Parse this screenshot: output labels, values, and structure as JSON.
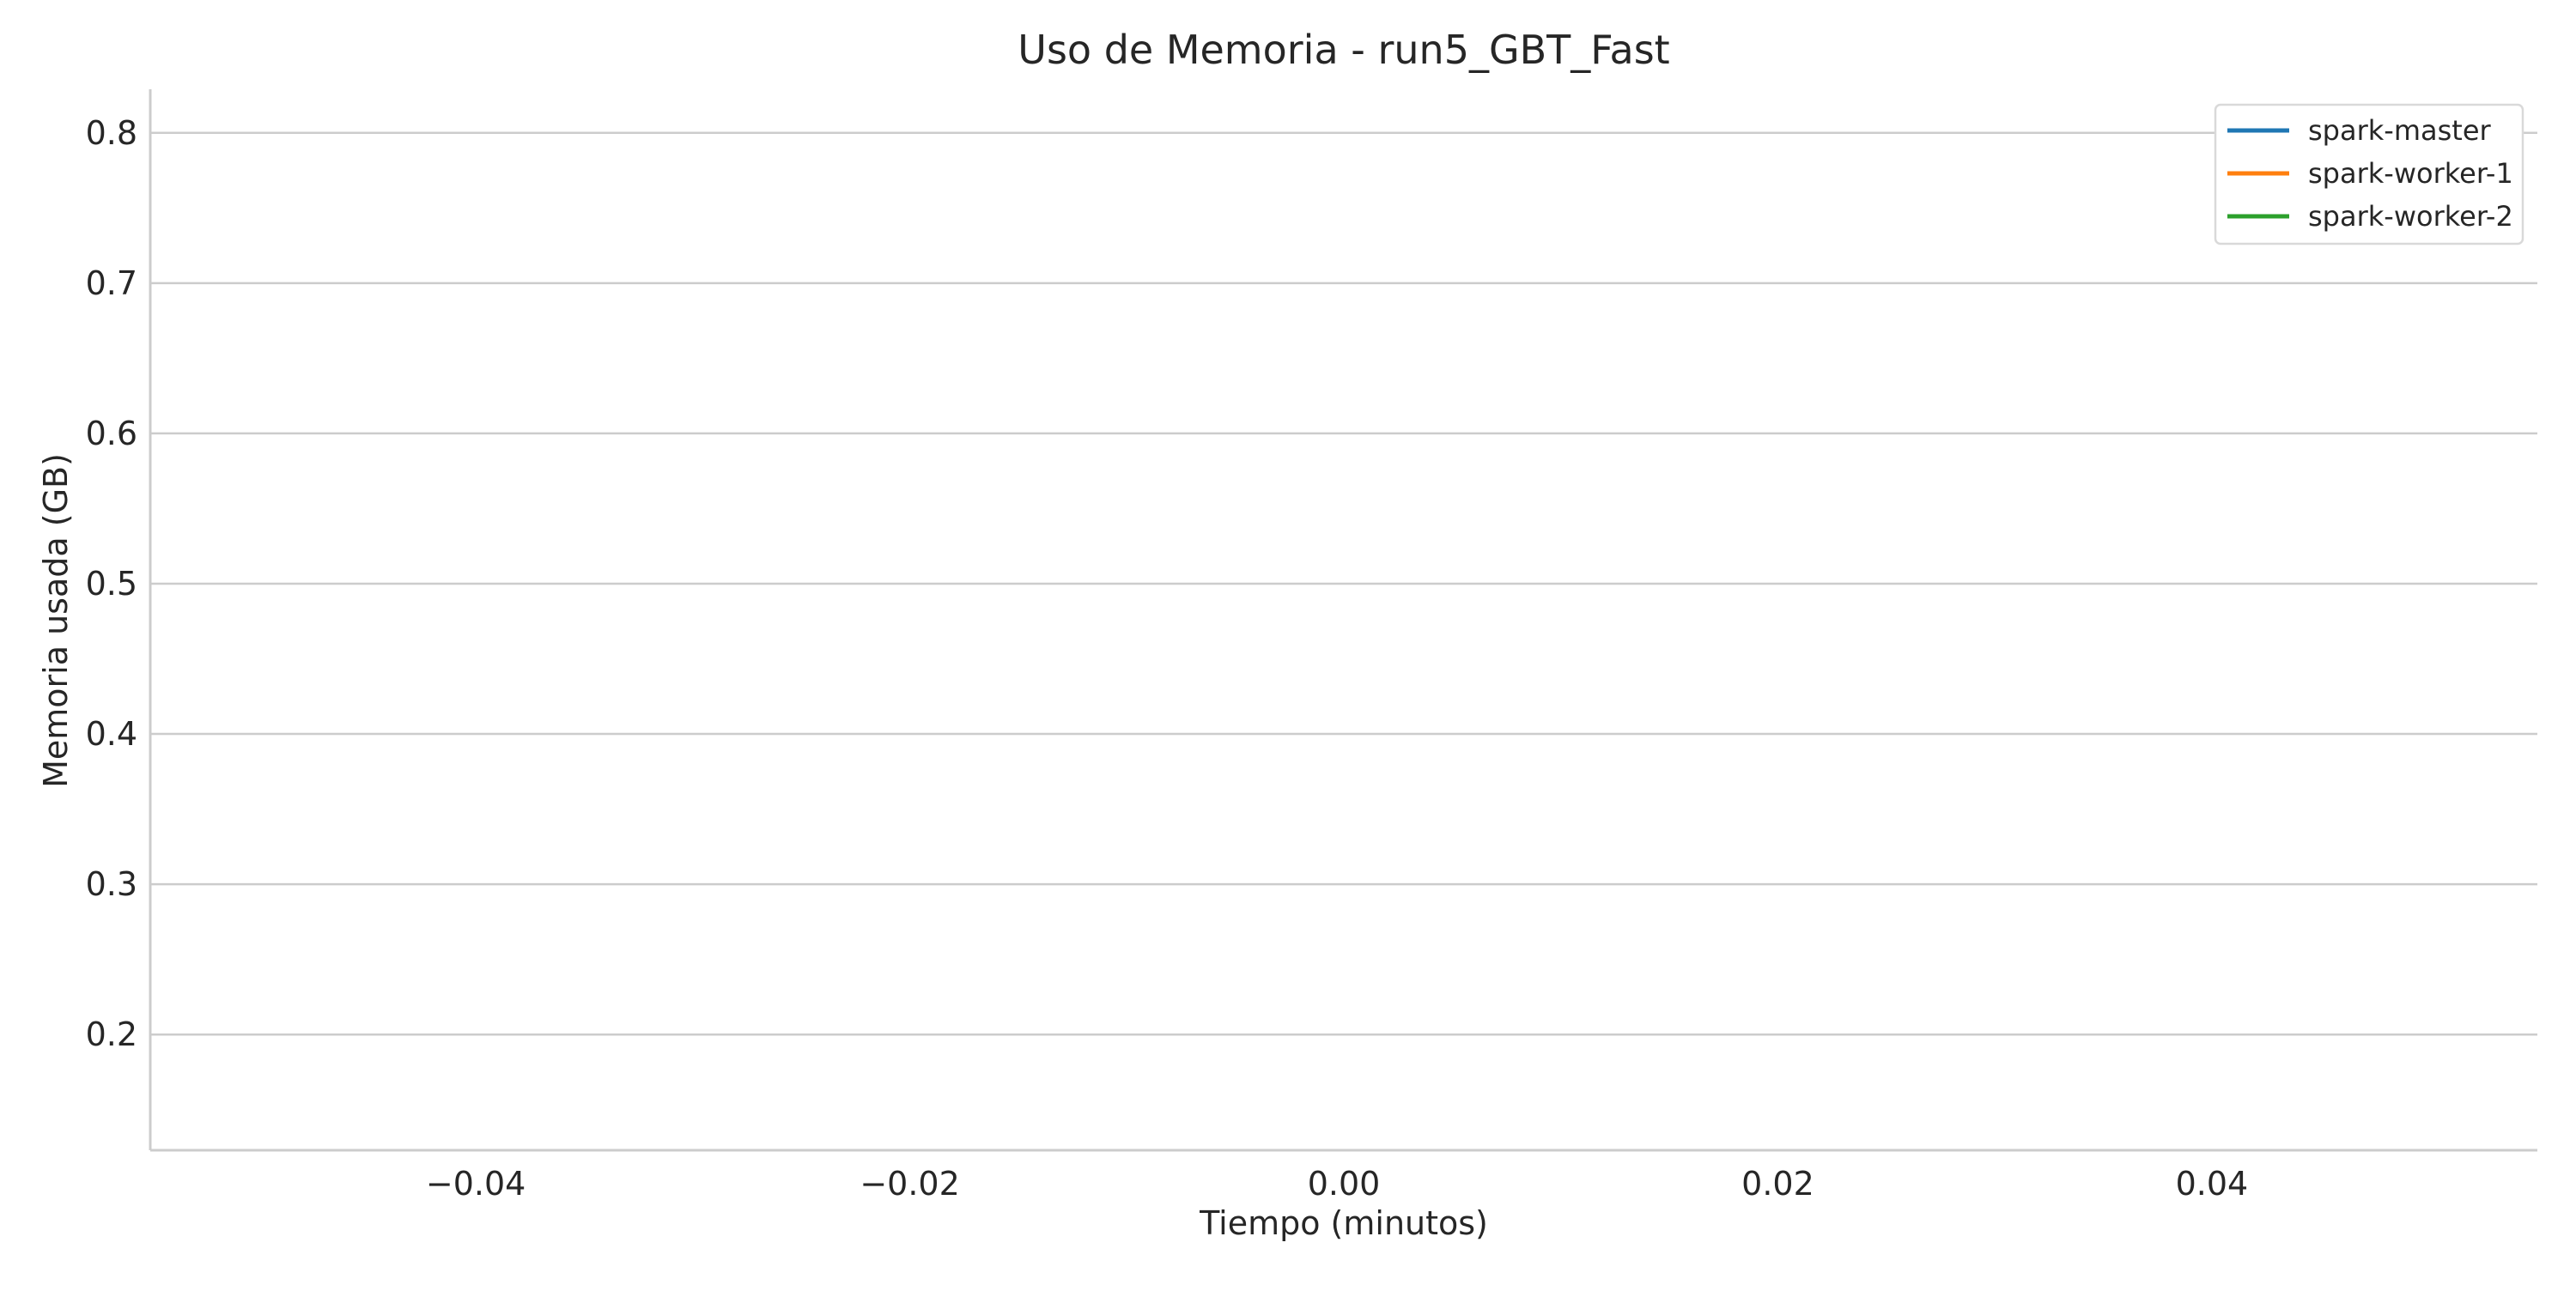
{
  "chart_data": {
    "type": "line",
    "title": "Uso de Memoria - run5_GBT_Fast",
    "xlabel": "Tiempo (minutos)",
    "ylabel": "Memoria usada (GB)",
    "xlim": [
      -0.055,
      0.055
    ],
    "ylim": [
      0.123,
      0.829
    ],
    "x_ticks": [
      -0.04,
      -0.02,
      0.0,
      0.02,
      0.04
    ],
    "x_tick_labels": [
      "−0.04",
      "−0.02",
      "0.00",
      "0.02",
      "0.04"
    ],
    "y_ticks": [
      0.2,
      0.3,
      0.4,
      0.5,
      0.6,
      0.7,
      0.8
    ],
    "y_tick_labels": [
      "0.2",
      "0.3",
      "0.4",
      "0.5",
      "0.6",
      "0.7",
      "0.8"
    ],
    "grid": "horizontal",
    "legend_position": "top-right",
    "series": [
      {
        "name": "spark-master",
        "color": "#1f77b4",
        "x": [],
        "y": []
      },
      {
        "name": "spark-worker-1",
        "color": "#ff7f0e",
        "x": [],
        "y": []
      },
      {
        "name": "spark-worker-2",
        "color": "#2ca02c",
        "x": [],
        "y": []
      }
    ]
  }
}
